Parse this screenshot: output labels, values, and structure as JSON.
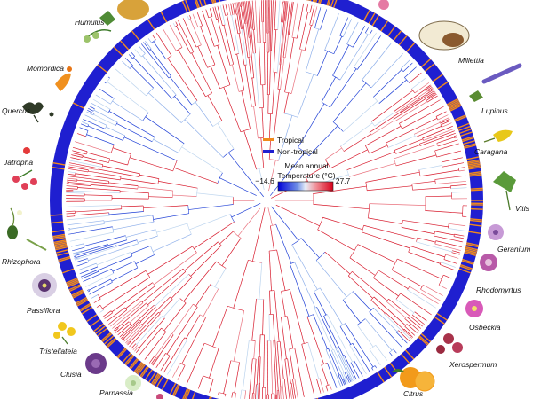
{
  "legend": {
    "tropical_label": "Tropical",
    "nontropical_label": "Non-tropical",
    "temp_label_line1": "Mean annual",
    "temp_label_line2": "Temperature (°C)",
    "temp_min": "−14.6",
    "temp_max": "27.7"
  },
  "colors": {
    "tropical": "#f08a1c",
    "nontropical": "#1f1fd0",
    "warm": "#d7192b",
    "cold": "#1e3fd6",
    "mid": "#bcd4ee"
  },
  "genera": [
    {
      "id": "humulus",
      "label": "Humulus"
    },
    {
      "id": "momordica",
      "label": "Momordica"
    },
    {
      "id": "quercus",
      "label": "Quercus"
    },
    {
      "id": "jatropha",
      "label": "Jatropha"
    },
    {
      "id": "rhizophora",
      "label": "Rhizophora"
    },
    {
      "id": "passiflora",
      "label": "Passiflora"
    },
    {
      "id": "tristellateia",
      "label": "Tristellateia"
    },
    {
      "id": "clusia",
      "label": "Clusia"
    },
    {
      "id": "parnassia",
      "label": "Parnassia"
    },
    {
      "id": "millettia",
      "label": "Millettia"
    },
    {
      "id": "lupinus",
      "label": "Lupinus"
    },
    {
      "id": "caragana",
      "label": "Caragana"
    },
    {
      "id": "vitis",
      "label": "Vitis"
    },
    {
      "id": "geranium",
      "label": "Geranium"
    },
    {
      "id": "rhodomyrtus",
      "label": "Rhodomyrtus"
    },
    {
      "id": "osbeckia",
      "label": "Osbeckia"
    },
    {
      "id": "xerospermum",
      "label": "Xerospermum"
    },
    {
      "id": "citrus",
      "label": "Citrus"
    }
  ]
}
